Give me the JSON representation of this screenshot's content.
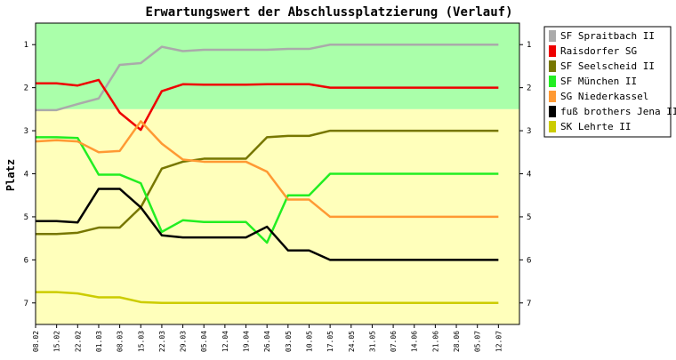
{
  "chart_data": {
    "type": "line",
    "title": "Erwartungswert der Abschlussplatzierung (Verlauf)",
    "xlabel": "",
    "ylabel": "Platz",
    "ylim": [
      0.5,
      7.5
    ],
    "y_inverted": true,
    "yticks": [
      1,
      2,
      3,
      4,
      5,
      6,
      7
    ],
    "grid": false,
    "legend_position": "right",
    "zones": [
      {
        "from": 0.5,
        "to": 2.5,
        "color": "#aaffaa"
      },
      {
        "from": 2.5,
        "to": 7.5,
        "color": "#ffffbb"
      }
    ],
    "categories": [
      "08.02",
      "15.02",
      "22.02",
      "01.03",
      "08.03",
      "15.03",
      "22.03",
      "29.03",
      "05.04",
      "12.04",
      "19.04",
      "26.04",
      "03.05",
      "10.05",
      "17.05",
      "24.05",
      "31.05",
      "07.06",
      "14.06",
      "21.06",
      "28.06",
      "05.07",
      "12.07"
    ],
    "series": [
      {
        "name": "SF Spraitbach II",
        "color": "#aaaaaa",
        "values": [
          2.52,
          2.52,
          2.38,
          2.25,
          1.47,
          1.43,
          1.05,
          1.15,
          1.12,
          1.12,
          1.12,
          1.12,
          1.1,
          1.1,
          1.0,
          1.0,
          1.0,
          1.0,
          1.0,
          1.0,
          1.0,
          1.0,
          1.0
        ]
      },
      {
        "name": "Raisdorfer SG",
        "color": "#ee0000",
        "values": [
          1.9,
          1.9,
          1.95,
          1.82,
          2.58,
          2.98,
          2.08,
          1.92,
          1.93,
          1.93,
          1.93,
          1.92,
          1.92,
          1.92,
          2.0,
          2.0,
          2.0,
          2.0,
          2.0,
          2.0,
          2.0,
          2.0,
          2.0
        ]
      },
      {
        "name": "SF Seelscheid II",
        "color": "#777700",
        "values": [
          5.4,
          5.4,
          5.37,
          5.25,
          5.25,
          4.78,
          3.88,
          3.72,
          3.65,
          3.65,
          3.65,
          3.15,
          3.12,
          3.12,
          3.0,
          3.0,
          3.0,
          3.0,
          3.0,
          3.0,
          3.0,
          3.0,
          3.0
        ]
      },
      {
        "name": "SF München II",
        "color": "#22ee22",
        "values": [
          3.15,
          3.15,
          3.17,
          4.02,
          4.02,
          4.22,
          5.35,
          5.08,
          5.12,
          5.12,
          5.12,
          5.6,
          4.5,
          4.5,
          4.0,
          4.0,
          4.0,
          4.0,
          4.0,
          4.0,
          4.0,
          4.0,
          4.0
        ]
      },
      {
        "name": "SG Niederkassel",
        "color": "#ff9933",
        "values": [
          3.25,
          3.22,
          3.25,
          3.5,
          3.47,
          2.78,
          3.3,
          3.67,
          3.72,
          3.72,
          3.72,
          3.95,
          4.6,
          4.6,
          5.0,
          5.0,
          5.0,
          5.0,
          5.0,
          5.0,
          5.0,
          5.0,
          5.0
        ]
      },
      {
        "name": "fuß brothers Jena II",
        "color": "#000000",
        "values": [
          5.1,
          5.1,
          5.13,
          4.35,
          4.35,
          4.78,
          5.43,
          5.48,
          5.48,
          5.48,
          5.48,
          5.23,
          5.78,
          5.78,
          6.0,
          6.0,
          6.0,
          6.0,
          6.0,
          6.0,
          6.0,
          6.0,
          6.0
        ]
      },
      {
        "name": "SK Lehrte II",
        "color": "#cccc00",
        "values": [
          6.75,
          6.75,
          6.78,
          6.87,
          6.87,
          6.98,
          7.0,
          7.0,
          7.0,
          7.0,
          7.0,
          7.0,
          7.0,
          7.0,
          7.0,
          7.0,
          7.0,
          7.0,
          7.0,
          7.0,
          7.0,
          7.0,
          7.0
        ]
      }
    ]
  }
}
